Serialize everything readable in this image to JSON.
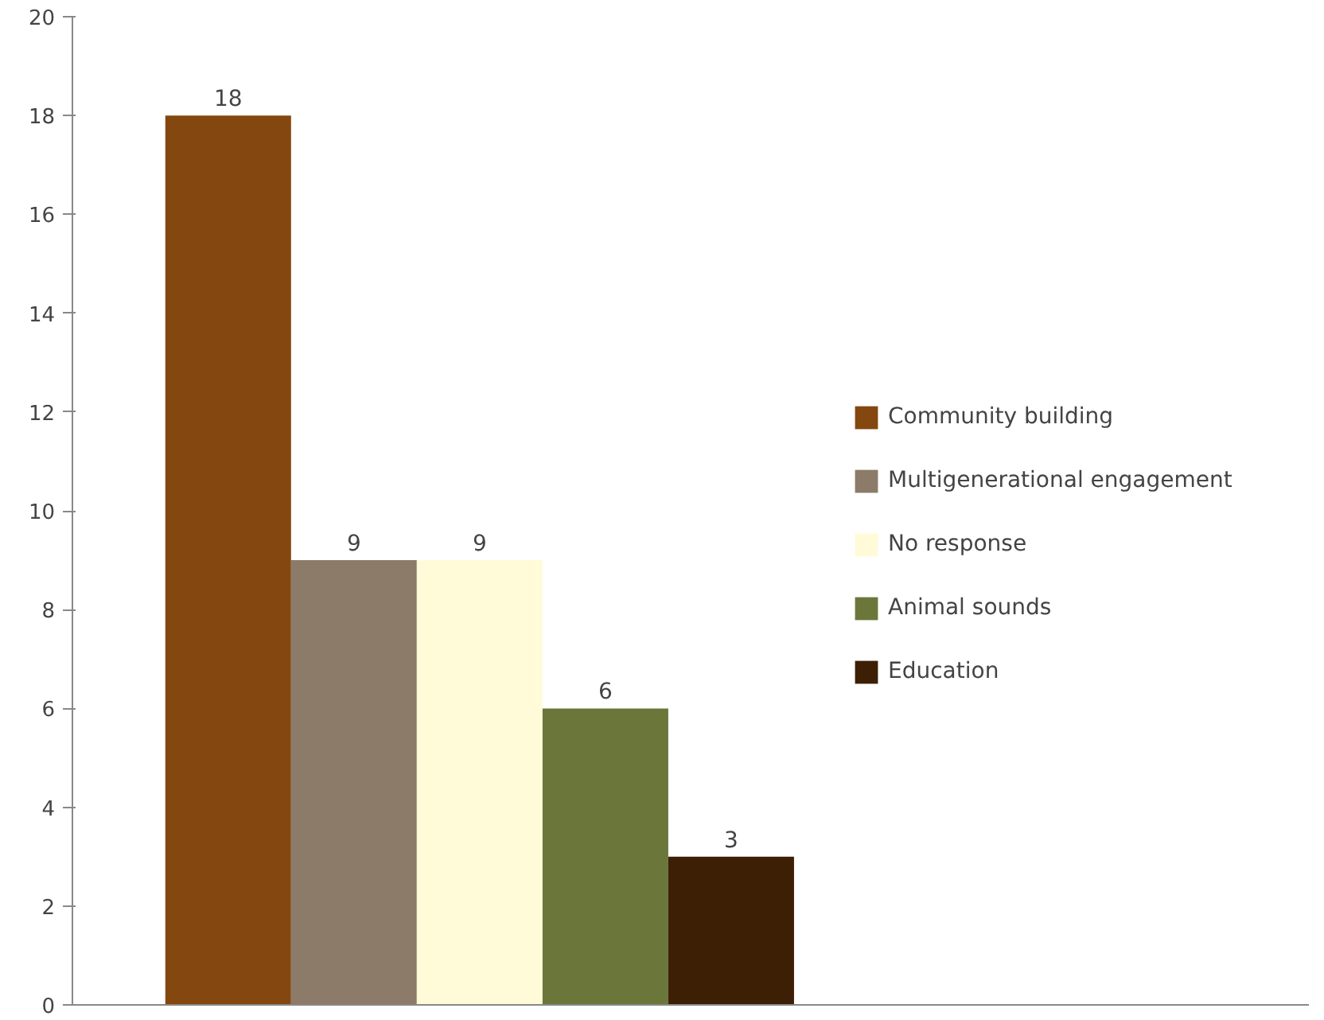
{
  "chart_data": {
    "type": "bar",
    "categories": [
      null
    ],
    "series": [
      {
        "name": "Community building",
        "color": "#84470f",
        "values": [
          18
        ]
      },
      {
        "name": "Multigenerational engagement",
        "color": "#8b7b68",
        "values": [
          9
        ]
      },
      {
        "name": "No response",
        "color": "#fffad8",
        "values": [
          9
        ]
      },
      {
        "name": "Animal sounds",
        "color": "#6b763b",
        "values": [
          6
        ]
      },
      {
        "name": "Education",
        "color": "#3d1f05",
        "values": [
          3
        ]
      }
    ],
    "ylim": [
      0,
      20
    ],
    "yticks": [
      0,
      2,
      4,
      6,
      8,
      10,
      12,
      14,
      16,
      18,
      20
    ],
    "grid": false,
    "legend": "right",
    "data_labels": true
  }
}
